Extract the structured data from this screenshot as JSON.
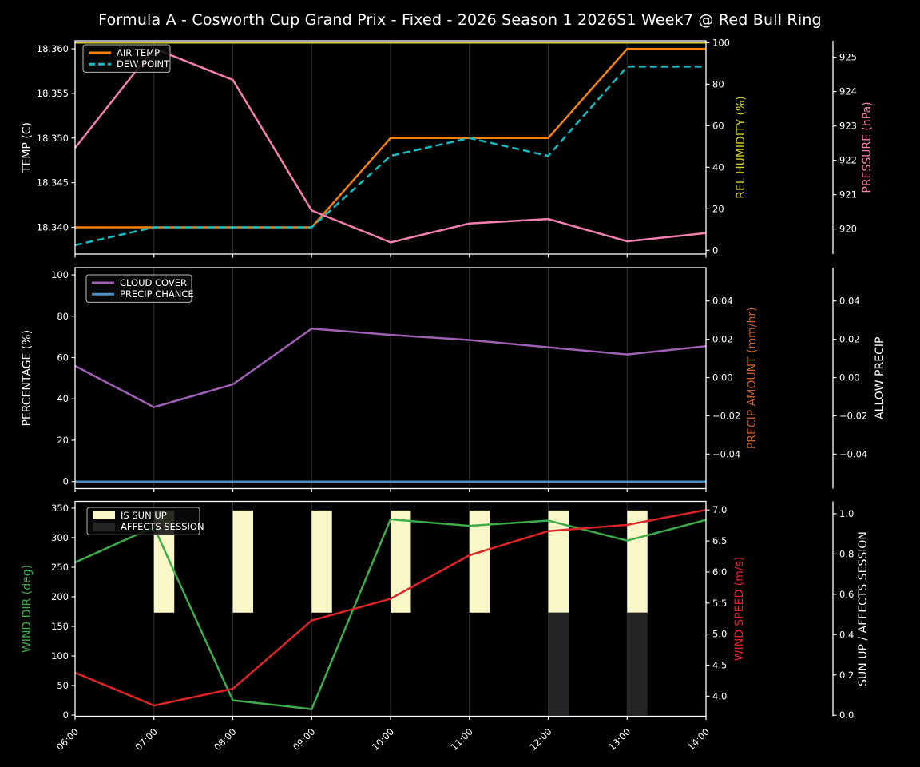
{
  "title": "Formula A - Cosworth Cup Grand Prix - Fixed - 2026 Season 1 2026S1 Week7 @ Red Bull Ring",
  "colors": {
    "background": "#000000",
    "foreground": "#ffffff",
    "grid": "#2d2d2d",
    "air_temp": "#f5810f",
    "dew_point": "#16bdc4",
    "rel_humidity": "#d4d420",
    "pressure": "#f480b1",
    "cloud_cover": "#9e5fb5",
    "precip_chance": "#4d8fc4",
    "precip_amount": "#c2602c",
    "allow_precip": "#ffffff",
    "wind_dir": "#3dac49",
    "wind_speed": "#de2427",
    "sun_up": "#f9f6c8",
    "affects_session": "#242427"
  },
  "x_axis": {
    "hours": [
      6,
      7,
      8,
      9,
      10,
      11,
      12,
      13,
      14
    ],
    "tick_labels": [
      "06:00",
      "07:00",
      "08:00",
      "09:00",
      "10:00",
      "11:00",
      "12:00",
      "13:00",
      "14:00"
    ]
  },
  "chart_data": [
    {
      "type": "line",
      "name": "temperature-panel",
      "left_axis": {
        "label": "TEMP (C)",
        "color_key": "foreground",
        "tick_labels": [
          "18.340",
          "18.345",
          "18.350",
          "18.355",
          "18.360"
        ],
        "tick_values": [
          18.34,
          18.345,
          18.35,
          18.355,
          18.36
        ],
        "range": [
          18.337,
          18.3609
        ]
      },
      "right_axes": [
        {
          "label": "REL HUMIDITY (%)",
          "color_key": "rel_humidity",
          "tick_labels": [
            "0",
            "20",
            "40",
            "60",
            "80",
            "100"
          ],
          "tick_values": [
            0,
            20,
            40,
            60,
            80,
            100
          ],
          "range": [
            -1.81,
            100.9
          ]
        },
        {
          "label": "PRESSURE (hPa)",
          "color_key": "pressure",
          "tick_labels": [
            "920",
            "921",
            "922",
            "923",
            "924",
            "925"
          ],
          "tick_values": [
            920,
            921,
            922,
            923,
            924,
            925
          ],
          "range": [
            919.27,
            925.48
          ]
        }
      ],
      "series": [
        {
          "name": "AIR TEMP",
          "color_key": "air_temp",
          "axis": "left",
          "dashed": false,
          "values": [
            18.34,
            18.34,
            18.34,
            18.34,
            18.35,
            18.35,
            18.35,
            18.36,
            18.36
          ]
        },
        {
          "name": "DEW POINT",
          "color_key": "dew_point",
          "axis": "left",
          "dashed": true,
          "values": [
            18.338,
            18.34,
            18.34,
            18.34,
            18.348,
            18.35,
            18.348,
            18.358,
            18.358
          ]
        },
        {
          "name": "REL HUMIDITY",
          "color_key": "rel_humidity",
          "axis": "right0",
          "dashed": false,
          "values": [
            100,
            100,
            100,
            100,
            100,
            100,
            100,
            100,
            100
          ]
        },
        {
          "name": "PRESSURE",
          "color_key": "pressure",
          "axis": "right1",
          "dashed": false,
          "values": [
            922.36,
            925.26,
            924.34,
            920.54,
            919.61,
            920.16,
            920.29,
            919.64,
            919.88
          ]
        }
      ],
      "legend": [
        {
          "label": "AIR TEMP",
          "color_key": "air_temp",
          "swatch": "line"
        },
        {
          "label": "DEW POINT",
          "color_key": "dew_point",
          "swatch": "dash"
        }
      ]
    },
    {
      "type": "line",
      "name": "precipitation-panel",
      "left_axis": {
        "label": "PERCENTAGE (%)",
        "color_key": "foreground",
        "tick_labels": [
          "0",
          "20",
          "40",
          "60",
          "80",
          "100"
        ],
        "tick_values": [
          0,
          20,
          40,
          60,
          80,
          100
        ],
        "range": [
          -3.4,
          103.5
        ]
      },
      "right_axes": [
        {
          "label": "PRECIP AMOUNT (mm/hr)",
          "color_key": "precip_amount",
          "tick_labels": [
            "0.04",
            "0.02",
            "0.00",
            "−0.02",
            "−0.04"
          ],
          "tick_values": [
            0.04,
            0.02,
            0.0,
            -0.02,
            -0.04
          ],
          "range": [
            -0.058,
            0.0574
          ]
        },
        {
          "label": "ALLOW PRECIP",
          "color_key": "allow_precip",
          "tick_labels": [
            "0.04",
            "0.02",
            "0.00",
            "−0.02",
            "−0.04"
          ],
          "tick_values": [
            0.04,
            0.02,
            0.0,
            -0.02,
            -0.04
          ],
          "range": [
            -0.058,
            0.0574
          ]
        }
      ],
      "series": [
        {
          "name": "CLOUD COVER",
          "color_key": "cloud_cover",
          "axis": "left",
          "dashed": false,
          "values": [
            56,
            36,
            47,
            74,
            71,
            68.5,
            65,
            61.5,
            65.5
          ]
        },
        {
          "name": "PRECIP CHANCE",
          "color_key": "precip_chance",
          "axis": "left",
          "dashed": false,
          "values": [
            0,
            0,
            0,
            0,
            0,
            0,
            0,
            0,
            0
          ]
        }
      ],
      "legend": [
        {
          "label": "CLOUD COVER",
          "color_key": "cloud_cover",
          "swatch": "line"
        },
        {
          "label": "PRECIP CHANCE",
          "color_key": "precip_chance",
          "swatch": "line"
        }
      ]
    },
    {
      "type": "line-bar",
      "name": "wind-panel",
      "left_axis": {
        "label": "WIND DIR (deg)",
        "color_key": "wind_dir",
        "tick_labels": [
          "0",
          "50",
          "100",
          "150",
          "200",
          "250",
          "300",
          "350"
        ],
        "tick_values": [
          0,
          50,
          100,
          150,
          200,
          250,
          300,
          350
        ],
        "range": [
          -2,
          361.4
        ]
      },
      "right_axes": [
        {
          "label": "WIND SPEED (m/s)",
          "color_key": "wind_speed",
          "tick_labels": [
            "4.0",
            "4.5",
            "5.0",
            "5.5",
            "6.0",
            "6.5",
            "7.0"
          ],
          "tick_values": [
            4.0,
            4.5,
            5.0,
            5.5,
            6.0,
            6.5,
            7.0
          ],
          "range": [
            3.677,
            7.138
          ]
        },
        {
          "label": "SUN UP / AFFECTS SESSION",
          "color_key": "foreground",
          "tick_labels": [
            "0.0",
            "0.2",
            "0.4",
            "0.6",
            "0.8",
            "1.0"
          ],
          "tick_values": [
            0.0,
            0.2,
            0.4,
            0.6,
            0.8,
            1.0
          ],
          "range": [
            -0.005,
            1.061
          ]
        }
      ],
      "bars": [
        {
          "label": "IS SUN UP",
          "color_key": "sun_up",
          "axis": "right1",
          "flags": [
            0,
            1,
            1,
            1,
            1,
            1,
            1,
            1,
            0
          ],
          "value_span": [
            0.509,
            1.016
          ]
        },
        {
          "label": "AFFECTS SESSION",
          "color_key": "affects_session",
          "axis": "right1",
          "flags": [
            0,
            0,
            0,
            0,
            0,
            0,
            1,
            1,
            0
          ],
          "value_span": [
            0.0,
            0.509
          ]
        }
      ],
      "series": [
        {
          "name": "WIND DIR",
          "color_key": "wind_dir",
          "axis": "left",
          "dashed": false,
          "values": [
            258,
            318,
            25,
            10,
            331,
            320,
            329,
            295,
            330
          ]
        },
        {
          "name": "WIND SPEED",
          "color_key": "wind_speed",
          "axis": "right0",
          "dashed": false,
          "values": [
            4.38,
            3.85,
            4.12,
            5.22,
            5.57,
            6.27,
            6.66,
            6.76,
            7.0
          ]
        }
      ],
      "legend": [
        {
          "label": "IS SUN UP",
          "color_key": "sun_up",
          "swatch": "patch"
        },
        {
          "label": "AFFECTS SESSION",
          "color_key": "affects_session",
          "swatch": "patch"
        }
      ]
    }
  ]
}
